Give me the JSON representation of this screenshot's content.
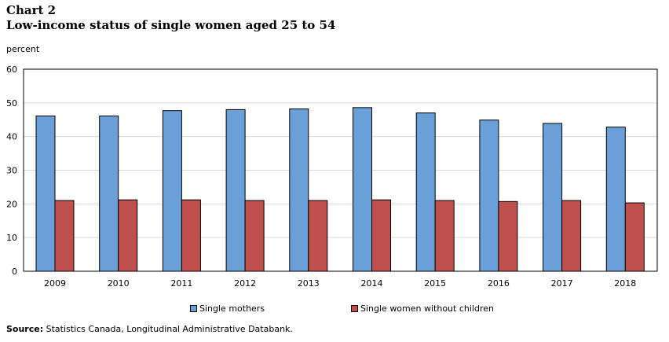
{
  "header": {
    "chart_number": "Chart 2",
    "title": "Low-income status of single women aged 25 to 54",
    "unit_label": "percent"
  },
  "source": {
    "label": "Source:",
    "text": "Statistics Canada, Longitudinal Administrative Databank."
  },
  "colors": {
    "single_mothers": "#6a9fd8",
    "without_children": "#c0504d",
    "grid": "#d9d9d9"
  },
  "chart_data": {
    "type": "bar",
    "title": "Low-income status of single women aged 25 to 54",
    "ylabel": "percent",
    "xlabel": "",
    "ylim": [
      0,
      60
    ],
    "yticks": [
      0,
      10,
      20,
      30,
      40,
      50,
      60
    ],
    "grid": true,
    "legend_position": "bottom",
    "categories": [
      "2009",
      "2010",
      "2011",
      "2012",
      "2013",
      "2014",
      "2015",
      "2016",
      "2017",
      "2018"
    ],
    "series": [
      {
        "name": "Single mothers",
        "values": [
          46.1,
          46.1,
          47.7,
          48.0,
          48.2,
          48.6,
          47.0,
          44.9,
          43.9,
          42.8
        ]
      },
      {
        "name": "Single women without children",
        "values": [
          21.0,
          21.2,
          21.2,
          21.0,
          21.0,
          21.2,
          21.0,
          20.7,
          21.0,
          20.3
        ]
      }
    ]
  }
}
